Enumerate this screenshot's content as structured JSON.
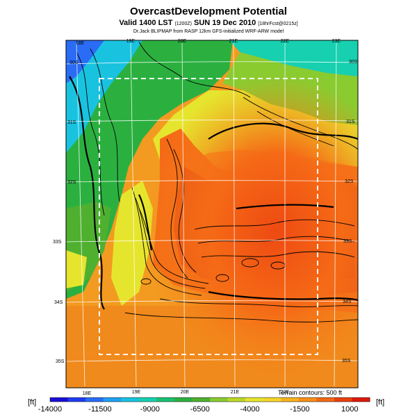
{
  "header": {
    "title": "OvercastDevelopment Potential",
    "subtitle_main": "Valid 1400 LST",
    "subtitle_code": "(1200Z)",
    "subtitle_date": "SUN 19 Dec 2010",
    "subtitle_forecast": "[18hrFcst@0215z]",
    "credit": "Dr.Jack BLIPMAP from RASP 12km GFS-initialized WRF-ARW model"
  },
  "map": {
    "lon_labels_top": [
      "18E",
      "19E",
      "20E",
      "21E",
      "22E",
      "23E"
    ],
    "lon_labels_bottom": [
      "18E",
      "19E",
      "20E",
      "21E",
      "22E"
    ],
    "lat_labels_left": [
      "30S",
      "31S",
      "32S",
      "33S",
      "34S",
      "35S"
    ],
    "lat_labels_right": [
      "30S",
      "31S",
      "32S",
      "33S",
      "34S",
      "35S"
    ],
    "terrain_note": "Terrain contours: 500 ft"
  },
  "colorbar": {
    "unit_left": "[ft]",
    "unit_right": "[ft]",
    "tick_labels": [
      "-14000",
      "-11500",
      "-9000",
      "-6500",
      "-4000",
      "-1500",
      "1000"
    ],
    "min": -14000,
    "max": 2000,
    "colors": [
      "#1a0fd6",
      "#1f3cf0",
      "#2a6cf5",
      "#20a0f0",
      "#19c3e0",
      "#17d0b0",
      "#19c070",
      "#2bb040",
      "#4fb030",
      "#8acb30",
      "#bcd829",
      "#e6e52e",
      "#f6d42a",
      "#f8b220",
      "#f78e1a",
      "#f06a14",
      "#e8400f",
      "#dd1a0c"
    ]
  }
}
